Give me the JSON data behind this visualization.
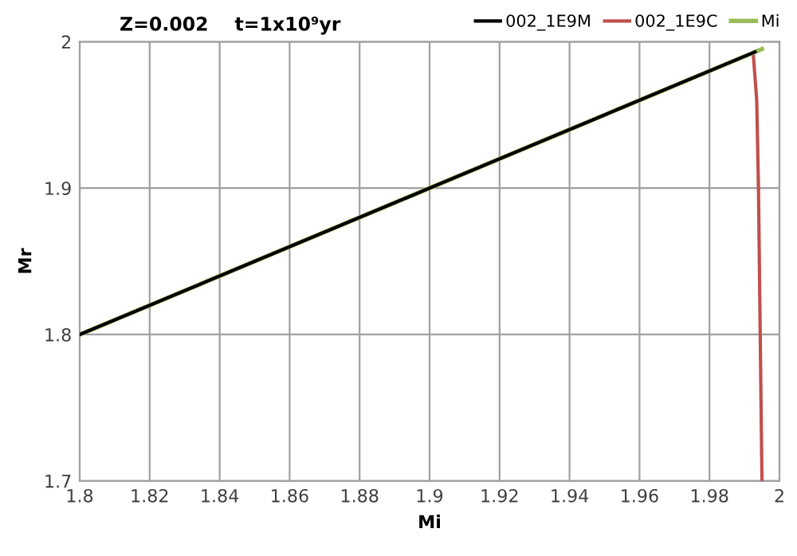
{
  "chart_data": {
    "type": "line",
    "title": "Z=0.002    t=1x10⁹yr",
    "xlabel": "Mi",
    "ylabel": "Mr",
    "xlim": [
      1.8,
      2.0
    ],
    "ylim": [
      1.7,
      2.0
    ],
    "xticks": [
      1.8,
      1.82,
      1.84,
      1.86,
      1.88,
      1.9,
      1.92,
      1.94,
      1.96,
      1.98,
      {
        "value": 2.0,
        "label": "2"
      }
    ],
    "yticks": [
      1.7,
      1.8,
      1.9,
      {
        "value": 2.0,
        "label": "2"
      }
    ],
    "grid": true,
    "legend": "top right",
    "marker": "none",
    "line_style": "solid",
    "series": [
      {
        "name": "002_1E9M",
        "color": "#000000",
        "x": [
          1.8,
          1.9,
          1.993
        ],
        "values": [
          1.8,
          1.9,
          1.993
        ]
      },
      {
        "name": "002_1E9C",
        "color": "#c0504d",
        "x": [
          1.9925,
          1.9935,
          1.994,
          1.9945,
          1.995
        ],
        "values": [
          1.992,
          1.96,
          1.9,
          1.8,
          1.7
        ]
      },
      {
        "name": "Mi",
        "color": "#9bbb59",
        "x": [
          1.8,
          1.9,
          1.995
        ],
        "values": [
          1.8,
          1.9,
          1.995
        ]
      }
    ]
  }
}
